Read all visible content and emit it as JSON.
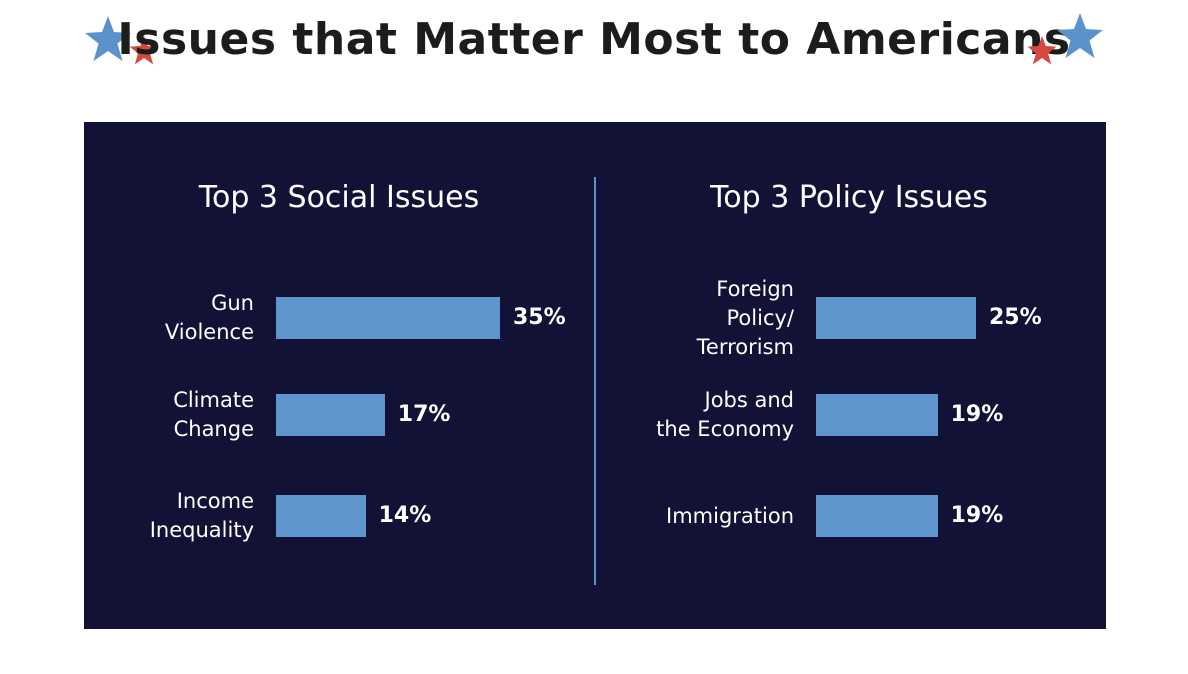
{
  "title": "Issues that Matter Most to Americans",
  "colors": {
    "panel_background": "#121236",
    "bar": "#5f95cd",
    "divider": "#5b92cc",
    "star_blue": "#5b92cc",
    "star_red": "#d9483f"
  },
  "icons": [
    "blue-star-icon",
    "red-star-icon"
  ],
  "chart_data": [
    {
      "type": "bar",
      "orientation": "horizontal",
      "title": "Top 3 Social Issues",
      "categories": [
        "Gun Violence",
        "Climate Change",
        "Income Inequality"
      ],
      "category_lines": [
        [
          "Gun",
          "Violence"
        ],
        [
          "Climate",
          "Change"
        ],
        [
          "Income",
          "Inequality"
        ]
      ],
      "values": [
        35,
        17,
        14
      ],
      "value_labels": [
        "35%",
        "17%",
        "14%"
      ],
      "unit": "%"
    },
    {
      "type": "bar",
      "orientation": "horizontal",
      "title": "Top 3 Policy Issues",
      "categories": [
        "Foreign Policy/ Terrorism",
        "Jobs and the Economy",
        "Immigration"
      ],
      "category_lines": [
        [
          "Foreign",
          "Policy/",
          "Terrorism"
        ],
        [
          "Jobs and",
          "the Economy"
        ],
        [
          "Immigration"
        ]
      ],
      "values": [
        25,
        19,
        19
      ],
      "value_labels": [
        "25%",
        "19%",
        "19%"
      ],
      "unit": "%"
    }
  ]
}
